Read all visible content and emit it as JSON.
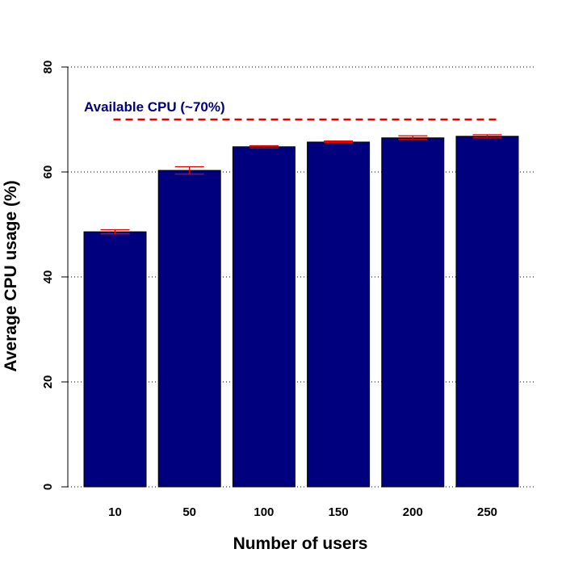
{
  "chart_data": {
    "type": "bar",
    "title": "",
    "xlabel": "Number of users",
    "ylabel": "Average CPU usage (%)",
    "categories": [
      "10",
      "50",
      "100",
      "150",
      "200",
      "250"
    ],
    "values": [
      48.6,
      60.3,
      64.8,
      65.7,
      66.5,
      66.8
    ],
    "error_bars": [
      [
        48.2,
        49.0
      ],
      [
        59.6,
        61.0
      ],
      [
        64.6,
        65.0
      ],
      [
        65.6,
        65.9
      ],
      [
        66.2,
        66.9
      ],
      [
        66.5,
        67.1
      ]
    ],
    "ylim": [
      0,
      80
    ],
    "yticks": [
      "0",
      "20",
      "40",
      "60",
      "80"
    ],
    "ytick_values": [
      0,
      20,
      40,
      60,
      80
    ],
    "grid": "horizontal dotted",
    "reference_line": {
      "value": 70,
      "label": "Available CPU (~70%)"
    },
    "colors": {
      "bar": "#00007f",
      "error_bar": "#e00000",
      "reference_line": "#e00000",
      "annotation_text": "#00007f"
    }
  }
}
